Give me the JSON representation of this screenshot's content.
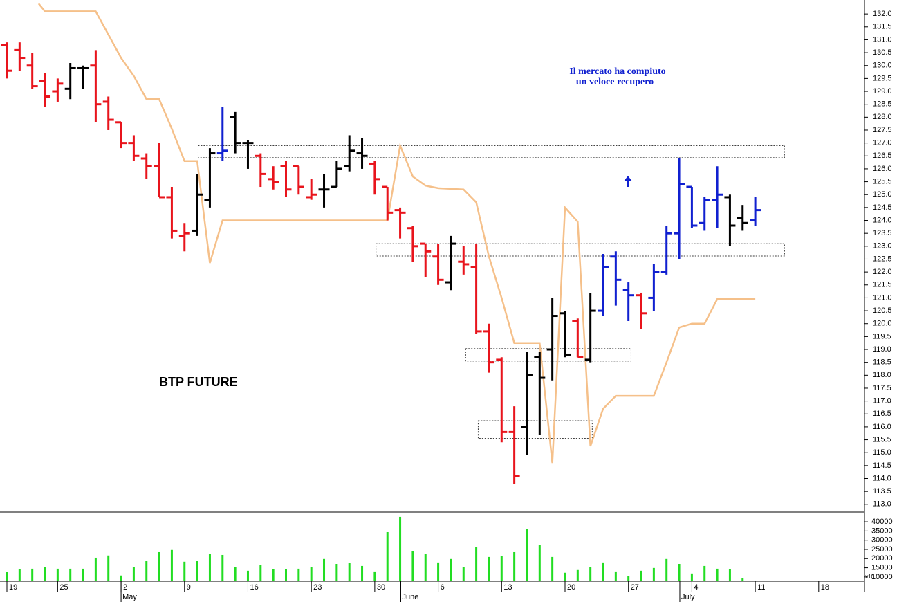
{
  "chart_data": {
    "type": "ohlc",
    "title": "BTP FUTURE",
    "annotation": [
      "Il mercato ha compiuto",
      "un veloce recupero"
    ],
    "open": [
      130.8,
      130.6,
      130.0,
      129.4,
      129.0,
      129.1,
      129.9,
      130.0,
      128.6,
      127.8,
      127.0,
      126.4,
      126.1,
      124.9,
      123.4,
      123.6,
      124.8,
      126.6,
      128.0,
      127.0,
      126.5,
      125.6,
      126.1,
      126.1,
      124.9,
      125.2,
      125.3,
      126.1,
      126.6,
      126.2,
      125.3,
      124.4,
      123.7,
      123.1,
      122.6,
      121.6,
      122.4,
      122.2,
      119.7,
      118.6,
      115.8,
      116.0,
      118.7,
      119.0,
      120.4,
      120.1,
      118.6,
      120.5,
      122.6,
      121.3,
      121.1,
      121.0,
      122.0,
      123.5,
      125.3,
      123.9,
      124.8,
      124.9,
      124.1,
      124.0
    ],
    "high": [
      130.9,
      130.9,
      130.5,
      129.7,
      129.5,
      130.1,
      130.0,
      130.6,
      128.8,
      127.8,
      127.3,
      126.6,
      127.0,
      125.3,
      123.9,
      125.8,
      126.8,
      128.4,
      128.2,
      127.1,
      126.6,
      126.1,
      126.3,
      126.1,
      125.6,
      125.8,
      126.3,
      127.3,
      127.2,
      126.3,
      125.3,
      124.5,
      123.8,
      123.1,
      123.1,
      123.4,
      123.0,
      123.1,
      120.0,
      118.7,
      116.8,
      118.9,
      118.9,
      121.0,
      120.5,
      120.2,
      121.2,
      122.7,
      122.8,
      121.6,
      121.2,
      122.3,
      123.8,
      126.4,
      125.3,
      124.9,
      126.1,
      125.0,
      124.6,
      124.9
    ],
    "low": [
      129.5,
      129.8,
      129.1,
      128.4,
      128.6,
      128.7,
      129.1,
      127.8,
      127.5,
      126.8,
      126.3,
      125.6,
      124.9,
      123.3,
      122.8,
      123.4,
      124.5,
      126.3,
      126.6,
      126.0,
      125.3,
      125.2,
      124.9,
      125.0,
      124.8,
      124.5,
      125.3,
      125.9,
      126.0,
      125.0,
      124.0,
      123.3,
      122.4,
      121.8,
      121.5,
      121.3,
      121.9,
      119.6,
      118.1,
      115.4,
      113.8,
      114.9,
      115.7,
      117.8,
      118.7,
      118.7,
      118.5,
      120.3,
      120.7,
      120.1,
      119.8,
      120.5,
      121.9,
      122.5,
      123.7,
      123.6,
      123.7,
      123.0,
      123.6,
      123.8
    ],
    "close": [
      129.8,
      130.3,
      129.2,
      128.8,
      129.3,
      129.9,
      129.9,
      128.5,
      127.9,
      127.0,
      126.5,
      126.1,
      124.9,
      123.6,
      123.5,
      125.0,
      126.6,
      126.7,
      127.0,
      127.0,
      125.8,
      125.5,
      125.2,
      125.3,
      125.0,
      125.2,
      126.0,
      126.7,
      126.5,
      125.6,
      124.3,
      124.3,
      123.0,
      122.8,
      121.7,
      123.1,
      122.3,
      119.7,
      118.5,
      115.8,
      114.1,
      118.0,
      117.9,
      120.3,
      118.8,
      118.7,
      120.5,
      122.2,
      121.7,
      121.1,
      120.4,
      122.0,
      123.5,
      125.4,
      123.8,
      124.8,
      125.0,
      123.8,
      123.9,
      124.4
    ],
    "colors": [
      "#e8141c",
      "#e8141c",
      "#e8141c",
      "#e8141c",
      "#e8141c",
      "#000000",
      "#000000",
      "#e8141c",
      "#e8141c",
      "#e8141c",
      "#e8141c",
      "#e8141c",
      "#e8141c",
      "#e8141c",
      "#e8141c",
      "#000000",
      "#000000",
      "#1020d0",
      "#000000",
      "#000000",
      "#e8141c",
      "#e8141c",
      "#e8141c",
      "#e8141c",
      "#e8141c",
      "#000000",
      "#000000",
      "#000000",
      "#000000",
      "#e8141c",
      "#e8141c",
      "#e8141c",
      "#e8141c",
      "#e8141c",
      "#e8141c",
      "#000000",
      "#e8141c",
      "#e8141c",
      "#e8141c",
      "#e8141c",
      "#e8141c",
      "#000000",
      "#000000",
      "#000000",
      "#000000",
      "#e8141c",
      "#000000",
      "#1020d0",
      "#1020d0",
      "#1020d0",
      "#e8141c",
      "#1020d0",
      "#1020d0",
      "#1020d0",
      "#1020d0",
      "#1020d0",
      "#1020d0",
      "#000000",
      "#000000",
      "#1020d0"
    ],
    "xlim": [
      -0.545,
      67.5
    ],
    "xticks": [
      {
        "value": 0,
        "label": "19"
      },
      {
        "value": 4,
        "label": "25"
      },
      {
        "value": 9,
        "label": "2"
      },
      {
        "value": 14,
        "label": "9"
      },
      {
        "value": 19,
        "label": "16"
      },
      {
        "value": 24,
        "label": "23"
      },
      {
        "value": 29,
        "label": "30"
      },
      {
        "value": 34,
        "label": "6"
      },
      {
        "value": 39,
        "label": "13"
      },
      {
        "value": 44,
        "label": "20"
      },
      {
        "value": 49,
        "label": "27"
      },
      {
        "value": 54,
        "label": "4"
      },
      {
        "value": 59,
        "label": "11"
      },
      {
        "value": 64,
        "label": "18"
      }
    ],
    "months": [
      {
        "value": 9,
        "label": "May"
      },
      {
        "value": 31.05,
        "label": "June"
      },
      {
        "value": 53.05,
        "label": "July"
      }
    ],
    "ylim": [
      112.7,
      132.54
    ],
    "yticks": [
      {
        "value": 113,
        "label": "113.0"
      },
      {
        "value": 113.5,
        "label": "113.5"
      },
      {
        "value": 114,
        "label": "114.0"
      },
      {
        "value": 114.5,
        "label": "114.5"
      },
      {
        "value": 115,
        "label": "115.0"
      },
      {
        "value": 115.5,
        "label": "115.5"
      },
      {
        "value": 116,
        "label": "116.0"
      },
      {
        "value": 116.5,
        "label": "116.5"
      },
      {
        "value": 117,
        "label": "117.0"
      },
      {
        "value": 117.5,
        "label": "117.5"
      },
      {
        "value": 118,
        "label": "118.0"
      },
      {
        "value": 118.5,
        "label": "118.5"
      },
      {
        "value": 119,
        "label": "119.0"
      },
      {
        "value": 119.5,
        "label": "119.5"
      },
      {
        "value": 120,
        "label": "120.0"
      },
      {
        "value": 120.5,
        "label": "120.5"
      },
      {
        "value": 121,
        "label": "121.0"
      },
      {
        "value": 121.5,
        "label": "121.5"
      },
      {
        "value": 122,
        "label": "122.0"
      },
      {
        "value": 122.5,
        "label": "122.5"
      },
      {
        "value": 123,
        "label": "123.0"
      },
      {
        "value": 123.5,
        "label": "123.5"
      },
      {
        "value": 124,
        "label": "124.0"
      },
      {
        "value": 124.5,
        "label": "124.5"
      },
      {
        "value": 125,
        "label": "125.0"
      },
      {
        "value": 125.5,
        "label": "125.5"
      },
      {
        "value": 126,
        "label": "126.0"
      },
      {
        "value": 126.5,
        "label": "126.5"
      },
      {
        "value": 127,
        "label": "127.0"
      },
      {
        "value": 127.5,
        "label": "127.5"
      },
      {
        "value": 128,
        "label": "128.0"
      },
      {
        "value": 128.5,
        "label": "128.5"
      },
      {
        "value": 129,
        "label": "129.0"
      },
      {
        "value": 129.5,
        "label": "129.5"
      },
      {
        "value": 130,
        "label": "130.0"
      },
      {
        "value": 130.5,
        "label": "130.5"
      },
      {
        "value": 131,
        "label": "131.0"
      },
      {
        "value": 131.5,
        "label": "131.5"
      },
      {
        "value": 132,
        "label": "132.0"
      }
    ],
    "indicator": {
      "color": "#f5c08a",
      "x": [
        2.5,
        3,
        7,
        8,
        9,
        10,
        11,
        12,
        13,
        14,
        15,
        16,
        17,
        30,
        31,
        32,
        33,
        34,
        36,
        37,
        38,
        39,
        40,
        42,
        43,
        44,
        45,
        46,
        47,
        48,
        51,
        52,
        53,
        54,
        55,
        56,
        59
      ],
      "values": [
        132.4,
        132.1,
        132.1,
        131.2,
        130.3,
        129.6,
        128.7,
        128.7,
        127.55,
        126.3,
        126.3,
        122.35,
        124.0,
        124.0,
        126.9,
        125.7,
        125.35,
        125.25,
        125.2,
        124.7,
        122.6,
        121.0,
        119.25,
        119.25,
        114.6,
        124.5,
        123.95,
        115.25,
        116.7,
        117.2,
        117.2,
        118.5,
        119.85,
        120.0,
        120.0,
        120.95,
        120.95
      ]
    },
    "zones": [
      {
        "x": [
          15.07,
          61.3
        ],
        "y": [
          126.43,
          126.9
        ]
      },
      {
        "x": [
          29.1,
          61.3
        ],
        "y": [
          122.62,
          123.1
        ]
      },
      {
        "x": [
          36.16,
          49.2
        ],
        "y": [
          118.55,
          119.03
        ]
      },
      {
        "x": [
          37.15,
          46.14
        ],
        "y": [
          115.55,
          116.24
        ]
      }
    ],
    "volume": {
      "type": "bar",
      "color": "#22dd22",
      "values": [
        12600,
        14100,
        14500,
        15300,
        14500,
        14500,
        14500,
        20500,
        21700,
        10800,
        15300,
        18600,
        23500,
        24700,
        18300,
        18600,
        22400,
        22000,
        15300,
        13400,
        16400,
        14100,
        14100,
        14500,
        15300,
        19800,
        17100,
        17500,
        16000,
        13000,
        34400,
        42700,
        23900,
        22400,
        17900,
        19800,
        15300,
        26200,
        20900,
        21300,
        23500,
        35900,
        27300,
        20900,
        12300,
        13800,
        15300,
        17900,
        13000,
        10400,
        13400,
        14900,
        19800,
        17100,
        11900,
        16000,
        14500,
        14100,
        9200,
        null
      ],
      "ylim": [
        7700,
        45300
      ],
      "yticks": [
        10000,
        15000,
        20000,
        25000,
        30000,
        35000,
        40000
      ],
      "unit_label": "x10"
    }
  }
}
